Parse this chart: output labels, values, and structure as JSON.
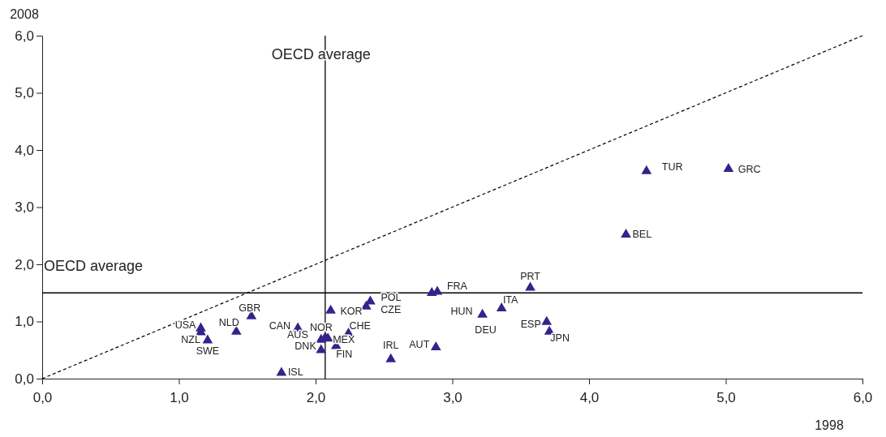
{
  "chart_data": {
    "type": "scatter",
    "xlabel": "1998",
    "ylabel": "2008",
    "xlim": [
      0,
      6
    ],
    "ylim": [
      0,
      6
    ],
    "xticks": [
      {
        "value": 0,
        "label": "0,0"
      },
      {
        "value": 1,
        "label": "1,0"
      },
      {
        "value": 2,
        "label": "2,0"
      },
      {
        "value": 3,
        "label": "3,0"
      },
      {
        "value": 4,
        "label": "4,0"
      },
      {
        "value": 5,
        "label": "5,0"
      },
      {
        "value": 6,
        "label": "6,0"
      }
    ],
    "yticks": [
      {
        "value": 0,
        "label": "0,0"
      },
      {
        "value": 1,
        "label": "1,0"
      },
      {
        "value": 2,
        "label": "2,0"
      },
      {
        "value": 3,
        "label": "3,0"
      },
      {
        "value": 4,
        "label": "4,0"
      },
      {
        "value": 5,
        "label": "5,0"
      },
      {
        "value": 6,
        "label": "6,0"
      }
    ],
    "grid": false,
    "series": [
      {
        "type": "line",
        "color": "#000000",
        "line_style": "dashed",
        "marker": "none",
        "x": [
          0,
          6
        ],
        "values": [
          0,
          6
        ]
      },
      {
        "color": "#33238a",
        "marker": "triangle",
        "x": [
          1.16,
          1.16,
          1.21,
          1.42,
          1.53,
          1.87,
          2.04,
          2.07,
          2.09,
          2.04,
          2.15,
          2.24,
          1.75,
          2.11,
          2.37,
          2.4,
          2.55,
          2.88,
          2.85,
          2.89,
          3.57,
          3.36,
          3.22,
          3.69,
          3.71,
          4.27,
          4.42,
          5.02
        ],
        "values": [
          0.88,
          0.81,
          0.67,
          0.82,
          1.09,
          0.88,
          0.68,
          0.72,
          0.7,
          0.5,
          0.57,
          0.79,
          0.1,
          1.19,
          1.26,
          1.35,
          0.34,
          0.55,
          1.5,
          1.52,
          1.59,
          1.23,
          1.12,
          0.99,
          0.82,
          2.52,
          3.63,
          3.67
        ]
      }
    ],
    "ref_lines": [
      {
        "axis": "x",
        "value": 2.07,
        "label": "OECD average",
        "color": "#000000"
      },
      {
        "axis": "y",
        "value": 1.5,
        "label": "OECD average",
        "color": "#000000"
      }
    ],
    "annotations": [
      {
        "text": "USA",
        "x": 1.16,
        "y": 0.88
      },
      {
        "text": "NZL",
        "x": 1.21,
        "y": 0.67
      },
      {
        "text": "SWE",
        "x": 1.21,
        "y": 0.67
      },
      {
        "text": "NLD",
        "x": 1.42,
        "y": 0.82
      },
      {
        "text": "GBR",
        "x": 1.53,
        "y": 1.09
      },
      {
        "text": "CAN",
        "x": 1.87,
        "y": 0.88
      },
      {
        "text": "AUS",
        "x": 2.04,
        "y": 0.68
      },
      {
        "text": "NOR",
        "x": 2.07,
        "y": 0.72
      },
      {
        "text": "MEX",
        "x": 2.09,
        "y": 0.7
      },
      {
        "text": "DNK",
        "x": 2.04,
        "y": 0.5
      },
      {
        "text": "FIN",
        "x": 2.15,
        "y": 0.57
      },
      {
        "text": "CHE",
        "x": 2.24,
        "y": 0.79
      },
      {
        "text": "ISL",
        "x": 1.75,
        "y": 0.1
      },
      {
        "text": "KOR",
        "x": 2.11,
        "y": 1.19
      },
      {
        "text": "POL",
        "x": 2.4,
        "y": 1.35
      },
      {
        "text": "CZE",
        "x": 2.37,
        "y": 1.26
      },
      {
        "text": "IRL",
        "x": 2.55,
        "y": 0.34
      },
      {
        "text": "AUT",
        "x": 2.88,
        "y": 0.55
      },
      {
        "text": "FRA",
        "x": 2.89,
        "y": 1.52
      },
      {
        "text": "PRT",
        "x": 3.57,
        "y": 1.59
      },
      {
        "text": "ITA",
        "x": 3.36,
        "y": 1.23
      },
      {
        "text": "HUN",
        "x": 3.22,
        "y": 1.12
      },
      {
        "text": "DEU",
        "x": 3.22,
        "y": 1.12
      },
      {
        "text": "ESP",
        "x": 3.69,
        "y": 0.99
      },
      {
        "text": "JPN",
        "x": 3.71,
        "y": 0.82
      },
      {
        "text": "BEL",
        "x": 4.27,
        "y": 2.52
      },
      {
        "text": "TUR",
        "x": 4.42,
        "y": 3.63
      },
      {
        "text": "GRC",
        "x": 5.02,
        "y": 3.67
      }
    ]
  }
}
